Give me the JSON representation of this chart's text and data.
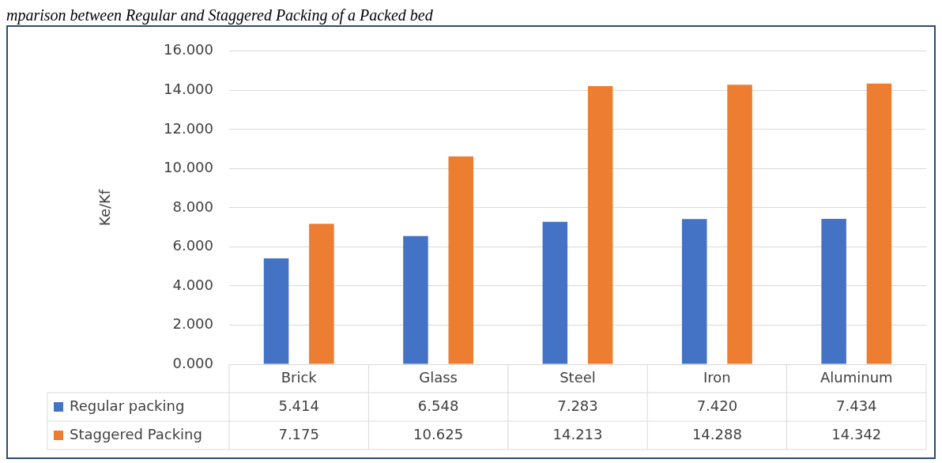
{
  "chart_data": {
    "type": "bar",
    "title": "mparison between Regular and Staggered Packing of a Packed bed",
    "ylabel": "Ke/Kf",
    "categories": [
      "Brick",
      "Glass",
      "Steel",
      "Iron",
      "Aluminum"
    ],
    "series": [
      {
        "name": "Regular packing",
        "color": "#4472c4",
        "values": [
          5.414,
          6.548,
          7.283,
          7.42,
          7.434
        ],
        "value_labels": [
          "5.414",
          "6.548",
          "7.283",
          "7.420",
          "7.434"
        ]
      },
      {
        "name": "Staggered Packing",
        "color": "#ed7d31",
        "values": [
          7.175,
          10.625,
          14.213,
          14.288,
          14.342
        ],
        "value_labels": [
          "7.175",
          "10.625",
          "14.213",
          "14.288",
          "14.342"
        ]
      }
    ],
    "ylim": [
      0,
      16
    ],
    "yticks": [
      {
        "value": 0,
        "label": "0.000"
      },
      {
        "value": 2,
        "label": "2.000"
      },
      {
        "value": 4,
        "label": "4.000"
      },
      {
        "value": 6,
        "label": "6.000"
      },
      {
        "value": 8,
        "label": "8.000"
      },
      {
        "value": 10,
        "label": "10.000"
      },
      {
        "value": 12,
        "label": "12.000"
      },
      {
        "value": 14,
        "label": "14.000"
      },
      {
        "value": 16,
        "label": "16.000"
      }
    ],
    "grid": "y",
    "legend": "bottom"
  }
}
